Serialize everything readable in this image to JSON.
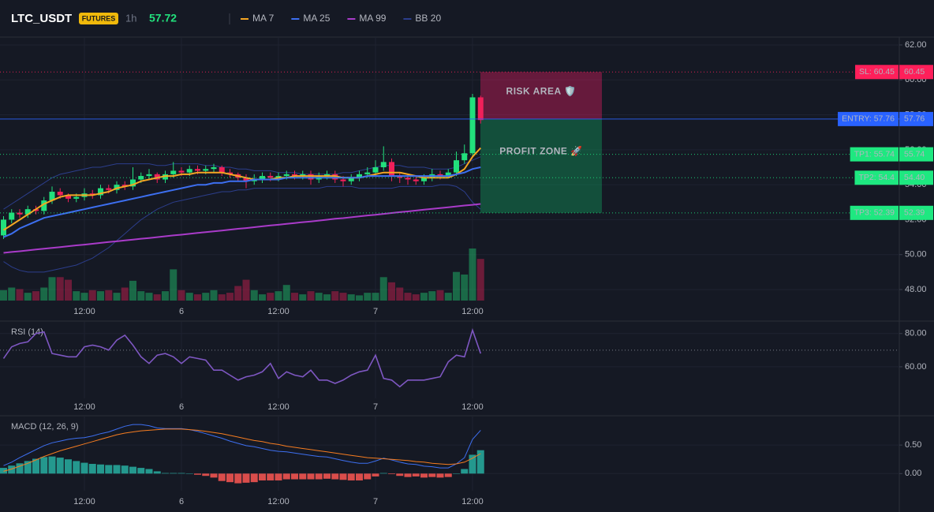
{
  "header": {
    "symbol": "LTC_USDT",
    "badge": "FUTURES",
    "interval": "1h",
    "price": 57.72
  },
  "chart_data": [
    {
      "type": "candlestick",
      "categories": [
        null,
        null,
        null,
        null,
        null,
        null,
        null,
        null,
        null,
        null,
        "12:00",
        null,
        null,
        null,
        null,
        null,
        null,
        null,
        null,
        null,
        null,
        null,
        "6",
        null,
        null,
        null,
        null,
        null,
        null,
        null,
        null,
        null,
        null,
        null,
        "12:00",
        null,
        null,
        null,
        null,
        null,
        null,
        null,
        null,
        null,
        null,
        null,
        "7",
        null,
        null,
        null,
        null,
        null,
        null,
        null,
        null,
        null,
        null,
        null,
        "12:00",
        null
      ],
      "open": [
        51.1,
        52.0,
        52.4,
        52.3,
        52.6,
        52.5,
        53.1,
        53.6,
        53.4,
        53.2,
        53.3,
        53.5,
        53.4,
        53.8,
        53.7,
        54.0,
        53.9,
        54.3,
        54.5,
        54.6,
        54.3,
        54.6,
        54.8,
        54.7,
        54.9,
        54.8,
        54.9,
        55.0,
        54.7,
        54.6,
        54.4,
        54.2,
        54.3,
        54.5,
        54.4,
        54.5,
        54.6,
        54.5,
        54.6,
        54.3,
        54.5,
        54.6,
        54.3,
        54.2,
        54.4,
        54.6,
        54.7,
        55.0,
        55.3,
        54.5,
        54.4,
        54.3,
        54.2,
        54.4,
        54.6,
        54.5,
        54.7,
        55.4,
        55.8,
        59.0
      ],
      "high": [
        52.2,
        52.6,
        52.6,
        52.8,
        52.8,
        53.3,
        53.9,
        53.8,
        53.5,
        53.5,
        53.8,
        53.7,
        54.0,
        54.0,
        54.2,
        54.2,
        55.0,
        54.7,
        54.9,
        54.7,
        54.8,
        55.3,
        55.0,
        55.1,
        55.1,
        55.1,
        55.2,
        55.1,
        54.9,
        54.7,
        54.6,
        54.6,
        54.7,
        54.7,
        54.7,
        54.8,
        54.8,
        54.8,
        54.8,
        54.7,
        54.8,
        54.8,
        54.5,
        54.6,
        54.8,
        55.0,
        55.4,
        56.2,
        55.5,
        54.7,
        54.6,
        54.5,
        54.6,
        54.9,
        54.8,
        54.9,
        55.9,
        56.3,
        59.2,
        59.1
      ],
      "low": [
        50.9,
        51.8,
        52.1,
        52.1,
        52.3,
        52.3,
        52.9,
        53.2,
        53.0,
        53.0,
        53.1,
        53.2,
        53.2,
        53.5,
        53.5,
        53.7,
        53.7,
        54.1,
        54.3,
        54.1,
        54.1,
        54.4,
        54.5,
        54.5,
        54.6,
        54.6,
        54.7,
        54.5,
        54.4,
        54.2,
        53.8,
        54.0,
        54.1,
        54.2,
        54.2,
        54.3,
        54.3,
        54.3,
        54.0,
        54.1,
        54.3,
        54.1,
        53.9,
        54.0,
        54.2,
        54.4,
        54.5,
        54.8,
        54.2,
        54.1,
        54.0,
        54.0,
        54.0,
        54.2,
        54.3,
        54.4,
        54.5,
        55.2,
        55.6,
        57.5
      ],
      "close": [
        52.0,
        52.4,
        52.3,
        52.6,
        52.5,
        53.1,
        53.6,
        53.4,
        53.2,
        53.3,
        53.5,
        53.4,
        53.8,
        53.7,
        54.0,
        53.9,
        54.3,
        54.5,
        54.6,
        54.3,
        54.6,
        54.8,
        54.7,
        54.9,
        54.8,
        54.9,
        55.0,
        54.7,
        54.6,
        54.4,
        54.2,
        54.3,
        54.5,
        54.4,
        54.5,
        54.6,
        54.5,
        54.6,
        54.3,
        54.5,
        54.6,
        54.3,
        54.2,
        54.4,
        54.6,
        54.7,
        55.0,
        55.3,
        54.5,
        54.4,
        54.3,
        54.2,
        54.4,
        54.6,
        54.5,
        54.7,
        55.4,
        55.8,
        59.0,
        57.7
      ],
      "volume": [
        20,
        25,
        22,
        15,
        18,
        25,
        45,
        45,
        40,
        18,
        15,
        20,
        18,
        20,
        15,
        25,
        38,
        18,
        15,
        12,
        18,
        60,
        20,
        15,
        12,
        15,
        20,
        12,
        15,
        28,
        40,
        20,
        12,
        15,
        18,
        30,
        15,
        12,
        18,
        15,
        12,
        18,
        15,
        12,
        10,
        15,
        15,
        45,
        35,
        25,
        15,
        12,
        15,
        18,
        20,
        15,
        55,
        50,
        100,
        80
      ],
      "up_color": "#22e07c",
      "down_color": "#f0205a",
      "series": [
        {
          "name": "MA 7",
          "color": "#f5a623",
          "values": [
            51.4,
            51.7,
            52.0,
            52.3,
            52.6,
            52.9,
            53.1,
            53.3,
            53.4,
            53.4,
            53.4,
            53.4,
            53.5,
            53.6,
            53.8,
            53.9,
            54.0,
            54.2,
            54.3,
            54.4,
            54.5,
            54.5,
            54.6,
            54.6,
            54.7,
            54.7,
            54.7,
            54.7,
            54.6,
            54.5,
            54.4,
            54.3,
            54.3,
            54.3,
            54.4,
            54.4,
            54.5,
            54.5,
            54.5,
            54.5,
            54.5,
            54.5,
            54.4,
            54.4,
            54.4,
            54.5,
            54.6,
            54.7,
            54.7,
            54.7,
            54.6,
            54.5,
            54.4,
            54.4,
            54.4,
            54.4,
            54.6,
            54.9,
            55.6,
            56.1
          ]
        },
        {
          "name": "MA 25",
          "color": "#3d6ff0",
          "values": [
            51.0,
            51.2,
            51.5,
            51.7,
            51.9,
            52.1,
            52.2,
            52.3,
            52.4,
            52.5,
            52.6,
            52.7,
            52.8,
            52.9,
            53.0,
            53.1,
            53.2,
            53.3,
            53.4,
            53.5,
            53.6,
            53.7,
            53.8,
            53.9,
            54.0,
            54.0,
            54.1,
            54.1,
            54.2,
            54.2,
            54.2,
            54.3,
            54.3,
            54.3,
            54.3,
            54.4,
            54.4,
            54.4,
            54.4,
            54.4,
            54.4,
            54.4,
            54.4,
            54.4,
            54.4,
            54.5,
            54.5,
            54.5,
            54.5,
            54.5,
            54.5,
            54.5,
            54.5,
            54.5,
            54.5,
            54.5,
            54.6,
            54.7,
            54.9,
            55.0
          ]
        },
        {
          "name": "MA 99",
          "color": "#a93bc9",
          "values": [
            50.1,
            50.15,
            50.19,
            50.24,
            50.29,
            50.34,
            50.38,
            50.43,
            50.48,
            50.53,
            50.57,
            50.62,
            50.67,
            50.72,
            50.76,
            50.81,
            50.86,
            50.91,
            50.95,
            51.0,
            51.05,
            51.1,
            51.14,
            51.19,
            51.24,
            51.29,
            51.33,
            51.38,
            51.43,
            51.48,
            51.52,
            51.57,
            51.62,
            51.67,
            51.71,
            51.76,
            51.81,
            51.86,
            51.9,
            51.95,
            52.0,
            52.05,
            52.09,
            52.14,
            52.19,
            52.24,
            52.28,
            52.33,
            52.38,
            52.43,
            52.47,
            52.52,
            52.57,
            52.62,
            52.66,
            52.71,
            52.76,
            52.81,
            52.85,
            52.9
          ]
        },
        {
          "name": "BB 20",
          "color": "#2c3e8c",
          "upper": [
            52.6,
            52.9,
            53.2,
            53.5,
            53.8,
            54.1,
            54.4,
            54.6,
            54.7,
            54.8,
            54.9,
            55.0,
            55.0,
            55.1,
            55.2,
            55.2,
            55.2,
            55.2,
            55.2,
            55.1,
            55.1,
            55.2,
            55.2,
            55.2,
            55.2,
            55.1,
            55.1,
            55.0,
            55.0,
            54.9,
            54.9,
            54.8,
            54.8,
            54.8,
            54.7,
            54.7,
            54.7,
            54.6,
            54.6,
            54.6,
            54.6,
            54.6,
            54.7,
            54.7,
            54.8,
            54.9,
            55.0,
            55.1,
            55.1,
            55.1,
            55.0,
            55.0,
            55.0,
            54.9,
            54.9,
            54.9,
            55.0,
            55.2,
            55.4,
            55.6
          ],
          "lower": [
            49.6,
            49.3,
            49.1,
            49.0,
            49.0,
            49.0,
            49.1,
            49.2,
            49.3,
            49.4,
            49.6,
            49.8,
            50.1,
            50.4,
            50.8,
            51.2,
            51.6,
            52.0,
            52.3,
            52.6,
            52.8,
            53.0,
            53.1,
            53.2,
            53.3,
            53.4,
            53.5,
            53.6,
            53.6,
            53.7,
            53.7,
            53.8,
            53.8,
            53.8,
            53.8,
            53.8,
            53.8,
            53.8,
            53.8,
            53.8,
            53.9,
            53.9,
            53.9,
            53.9,
            53.8,
            53.8,
            53.8,
            53.8,
            53.8,
            53.9,
            53.9,
            53.9,
            53.9,
            53.9,
            54.0,
            54.0,
            53.9,
            53.6,
            53.0,
            52.6
          ]
        }
      ],
      "ylim": [
        47.37,
        62.45
      ],
      "yticks": [
        {
          "value": 48,
          "label": "48.00"
        },
        {
          "value": 50,
          "label": "50.00"
        },
        {
          "value": 52,
          "label": "52.00"
        },
        {
          "value": 54,
          "label": "54.00"
        },
        {
          "value": 56,
          "label": "56.00"
        },
        {
          "value": 58,
          "label": "58.00"
        },
        {
          "value": 60,
          "label": "60.00"
        },
        {
          "value": 62,
          "label": "62.00"
        }
      ],
      "levels": [
        {
          "value": 60.45,
          "label": "SL: 60.45",
          "price_label": "60.45",
          "color": "#ff1f5a",
          "text_color": "#ffffff",
          "line": "dotted"
        },
        {
          "value": 57.76,
          "label": "ENTRY: 57.76",
          "price_label": "57.76",
          "color": "#2962ff",
          "text_color": "#ffffff",
          "line": "solid"
        },
        {
          "value": 55.74,
          "label": "TP1: 55.74",
          "price_label": "55.74",
          "color": "#1ee880",
          "text_color": "#000000",
          "line": "dotted"
        },
        {
          "value": 54.4,
          "label": "TP2: 54.4",
          "price_label": "54.40",
          "color": "#1ee880",
          "text_color": "#000000",
          "line": "dotted"
        },
        {
          "value": 52.39,
          "label": "TP3: 52.39",
          "price_label": "52.39",
          "color": "#1ee880",
          "text_color": "#000000",
          "line": "dotted"
        }
      ],
      "zones": [
        {
          "label": "RISK AREA 🛡️",
          "range": [
            57.76,
            60.45
          ],
          "color": "#e91e63",
          "text_color": "#ff2d6f"
        },
        {
          "label": "PROFIT ZONE 🚀",
          "range": [
            52.39,
            57.76
          ],
          "color": "#0fa860",
          "text_color": "#2ee87a"
        }
      ]
    },
    {
      "type": "line",
      "title": "RSI (14)",
      "series": [
        {
          "color": "#7e57c2",
          "values": [
            65,
            72,
            74,
            75,
            80,
            81,
            68,
            67,
            66,
            66,
            72,
            73,
            72,
            70,
            76,
            79,
            73,
            66,
            62,
            67,
            68,
            66,
            62,
            66,
            65,
            64,
            58,
            58,
            55,
            52,
            54,
            55,
            57,
            62,
            53,
            57,
            55,
            54,
            58,
            52,
            52,
            50,
            52,
            55,
            57,
            58,
            67,
            53,
            52,
            48,
            52,
            52,
            52,
            53,
            54,
            63,
            67,
            66,
            82,
            68
          ]
        }
      ],
      "ylim": [
        41,
        87
      ],
      "yticks": [
        {
          "value": 60,
          "label": "60.00"
        },
        {
          "value": 80,
          "label": "80.00"
        }
      ],
      "level": 70
    },
    {
      "type": "macd",
      "title": "MACD (12, 26, 9)",
      "series": [
        {
          "color": "#3d6ff0",
          "values": [
            0.14,
            0.2,
            0.28,
            0.35,
            0.42,
            0.49,
            0.54,
            0.57,
            0.6,
            0.62,
            0.63,
            0.66,
            0.7,
            0.73,
            0.78,
            0.83,
            0.86,
            0.86,
            0.84,
            0.8,
            0.79,
            0.79,
            0.79,
            0.77,
            0.74,
            0.7,
            0.66,
            0.62,
            0.57,
            0.53,
            0.49,
            0.47,
            0.44,
            0.41,
            0.39,
            0.38,
            0.36,
            0.34,
            0.32,
            0.3,
            0.29,
            0.26,
            0.23,
            0.2,
            0.18,
            0.18,
            0.22,
            0.27,
            0.24,
            0.2,
            0.17,
            0.16,
            0.13,
            0.12,
            0.1,
            0.1,
            0.17,
            0.28,
            0.6,
            0.76
          ]
        },
        {
          "color": "#f57c20",
          "values": [
            0.04,
            0.08,
            0.13,
            0.18,
            0.24,
            0.3,
            0.35,
            0.4,
            0.44,
            0.48,
            0.52,
            0.56,
            0.6,
            0.64,
            0.68,
            0.71,
            0.73,
            0.75,
            0.76,
            0.77,
            0.78,
            0.78,
            0.78,
            0.77,
            0.76,
            0.74,
            0.72,
            0.7,
            0.67,
            0.64,
            0.61,
            0.58,
            0.56,
            0.53,
            0.51,
            0.48,
            0.46,
            0.44,
            0.42,
            0.4,
            0.38,
            0.36,
            0.34,
            0.32,
            0.3,
            0.28,
            0.27,
            0.26,
            0.25,
            0.24,
            0.23,
            0.21,
            0.2,
            0.18,
            0.17,
            0.16,
            0.17,
            0.2,
            0.27,
            0.35
          ]
        }
      ],
      "histogram": {
        "up_color": "#26a69a",
        "down_color": "#ef5350",
        "values": [
          0.1,
          0.14,
          0.18,
          0.22,
          0.26,
          0.29,
          0.3,
          0.28,
          0.25,
          0.22,
          0.19,
          0.17,
          0.16,
          0.15,
          0.15,
          0.14,
          0.12,
          0.1,
          0.08,
          0.04,
          0.01,
          0.01,
          0.01,
          0.0,
          -0.02,
          -0.04,
          -0.07,
          -0.13,
          -0.15,
          -0.17,
          -0.16,
          -0.15,
          -0.12,
          -0.12,
          -0.12,
          -0.1,
          -0.1,
          -0.1,
          -0.1,
          -0.1,
          -0.09,
          -0.1,
          -0.11,
          -0.12,
          -0.12,
          -0.1,
          -0.05,
          0.01,
          -0.01,
          -0.04,
          -0.06,
          -0.05,
          -0.07,
          -0.06,
          -0.07,
          -0.06,
          0.0,
          0.08,
          0.33,
          0.41
        ]
      },
      "ylim": [
        -0.3,
        1.0
      ],
      "yticks": [
        {
          "value": 0,
          "label": "0.00"
        },
        {
          "value": 0.5,
          "label": "0.50"
        }
      ]
    }
  ]
}
